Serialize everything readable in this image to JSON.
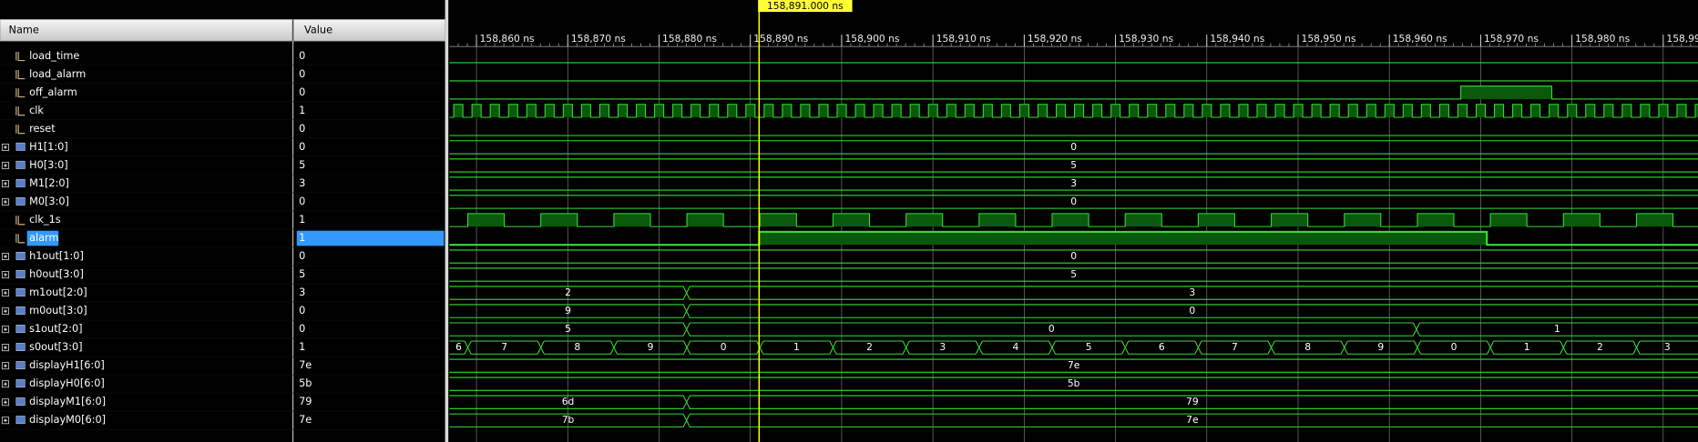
{
  "columns": {
    "name": "Name",
    "value": "Value"
  },
  "cursor": "158,891.000 ns",
  "ruler": [
    "158,860 ns",
    "158,870 ns",
    "158,880 ns",
    "158,890 ns",
    "158,900 ns",
    "158,910 ns",
    "158,920 ns",
    "158,930 ns",
    "158,940 ns",
    "158,950 ns",
    "158,960 ns",
    "158,970 ns",
    "158,980 ns",
    "158,990 ns"
  ],
  "signals": [
    {
      "name": "load_time",
      "value": "0"
    },
    {
      "name": "load_alarm",
      "value": "0"
    },
    {
      "name": "off_alarm",
      "value": "0"
    },
    {
      "name": "clk",
      "value": "1"
    },
    {
      "name": "reset",
      "value": "0"
    },
    {
      "name": "H1[1:0]",
      "value": "0",
      "segments": [
        "0"
      ]
    },
    {
      "name": "H0[3:0]",
      "value": "5",
      "segments": [
        "5"
      ]
    },
    {
      "name": "M1[2:0]",
      "value": "3",
      "segments": [
        "3"
      ]
    },
    {
      "name": "M0[3:0]",
      "value": "0",
      "segments": [
        "0"
      ]
    },
    {
      "name": "clk_1s",
      "value": "1"
    },
    {
      "name": "alarm",
      "value": "1"
    },
    {
      "name": "h1out[1:0]",
      "value": "0",
      "segments": [
        "0"
      ]
    },
    {
      "name": "h0out[3:0]",
      "value": "5",
      "segments": [
        "5"
      ]
    },
    {
      "name": "m1out[2:0]",
      "value": "3",
      "segments": [
        "2",
        "3"
      ]
    },
    {
      "name": "m0out[3:0]",
      "value": "0",
      "segments": [
        "9",
        "0"
      ]
    },
    {
      "name": "s1out[2:0]",
      "value": "0",
      "segments": [
        "5",
        "0",
        "1"
      ]
    },
    {
      "name": "s0out[3:0]",
      "value": "1",
      "segments": [
        "6",
        "7",
        "8",
        "9",
        "0",
        "1",
        "2",
        "3",
        "4",
        "5",
        "6",
        "7",
        "8",
        "9",
        "0",
        "1",
        "2",
        "3"
      ]
    },
    {
      "name": "displayH1[6:0]",
      "value": "7e",
      "segments": [
        "7e"
      ]
    },
    {
      "name": "displayH0[6:0]",
      "value": "5b",
      "segments": [
        "5b"
      ]
    },
    {
      "name": "displayM1[6:0]",
      "value": "79",
      "segments": [
        "6d",
        "79"
      ]
    },
    {
      "name": "displayM0[6:0]",
      "value": "7e",
      "segments": [
        "7b",
        "7e"
      ]
    }
  ]
}
